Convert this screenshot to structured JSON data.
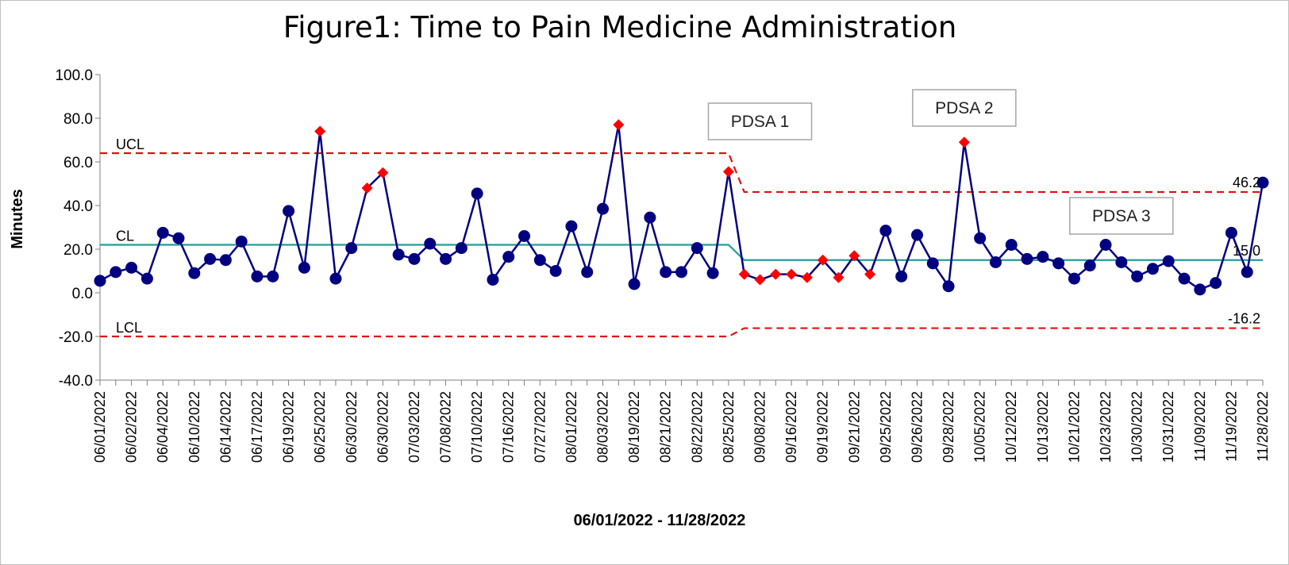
{
  "chart_data": {
    "type": "line",
    "title": "Figure1: Time to Pain Medicine Administration",
    "xlabel": "06/01/2022  -  11/28/2022",
    "ylabel": "Minutes",
    "ylim": [
      -40,
      100
    ],
    "yticks": [
      "100.0",
      "80.0",
      "60.0",
      "40.0",
      "20.0",
      "0.0",
      "-20.0",
      "-40.0"
    ],
    "grid": false,
    "colors": {
      "data_line": "#000080",
      "point_normal": "#000080",
      "point_signal": "#ff0000",
      "center_line": "#1f9e9e",
      "limit_line": "#e01010"
    },
    "x_tick_labels": [
      "06/01/2022",
      "06/02/2022",
      "06/04/2022",
      "06/10/2022",
      "06/14/2022",
      "06/17/2022",
      "06/19/2022",
      "06/25/2022",
      "06/30/2022",
      "06/30/2022",
      "07/03/2022",
      "07/08/2022",
      "07/10/2022",
      "07/16/2022",
      "07/27/2022",
      "08/01/2022",
      "08/03/2022",
      "08/19/2022",
      "08/21/2022",
      "08/22/2022",
      "08/25/2022",
      "09/08/2022",
      "09/16/2022",
      "09/19/2022",
      "09/21/2022",
      "09/25/2022",
      "09/26/2022",
      "09/28/2022",
      "10/05/2022",
      "10/12/2022",
      "10/13/2022",
      "10/21/2022",
      "10/23/2022",
      "10/30/2022",
      "10/31/2022",
      "11/09/2022",
      "11/19/2022",
      "11/28/2022"
    ],
    "values": [
      5.5,
      9.5,
      11.5,
      6.5,
      27.5,
      25,
      9,
      15.5,
      15,
      23.5,
      7.5,
      7.5,
      37.5,
      11.5,
      74,
      6.5,
      20.5,
      48,
      55,
      17.5,
      15.5,
      22.5,
      15.5,
      20.5,
      45.5,
      6,
      16.5,
      26,
      15,
      10,
      30.5,
      9.5,
      38.5,
      77,
      4,
      34.5,
      9.5,
      9.5,
      20.5,
      9,
      55.5,
      8.5,
      6,
      8.5,
      8.5,
      7,
      15,
      7,
      17,
      8.5,
      28.5,
      7.5,
      26.5,
      13.5,
      3,
      69,
      25,
      14,
      22,
      15.5,
      16.5,
      13.5,
      6.5,
      12.5,
      22,
      14,
      7.5,
      11,
      14.5,
      6.5,
      1.5,
      4.5,
      27.5,
      9.5,
      50.5
    ],
    "signal_points": [
      14,
      17,
      18,
      33,
      40,
      41,
      42,
      43,
      44,
      45,
      46,
      47,
      48,
      49,
      55
    ],
    "phases": [
      {
        "start": 0,
        "end": 40,
        "ucl": 64,
        "cl": 22,
        "lcl": -20
      },
      {
        "start": 41,
        "end": 74,
        "ucl": 46.2,
        "cl": 15.0,
        "lcl": -16.2
      }
    ],
    "line_labels": {
      "ucl": "UCL",
      "cl": "CL",
      "lcl": "LCL"
    },
    "value_labels": {
      "ucl": "46.2",
      "cl": "15.0",
      "lcl": "-16.2"
    },
    "annotations": [
      {
        "text": "PDSA 1",
        "at_index": 42
      },
      {
        "text": "PDSA 2",
        "at_index": 55
      },
      {
        "text": "PDSA 3",
        "at_index": 65
      }
    ]
  }
}
